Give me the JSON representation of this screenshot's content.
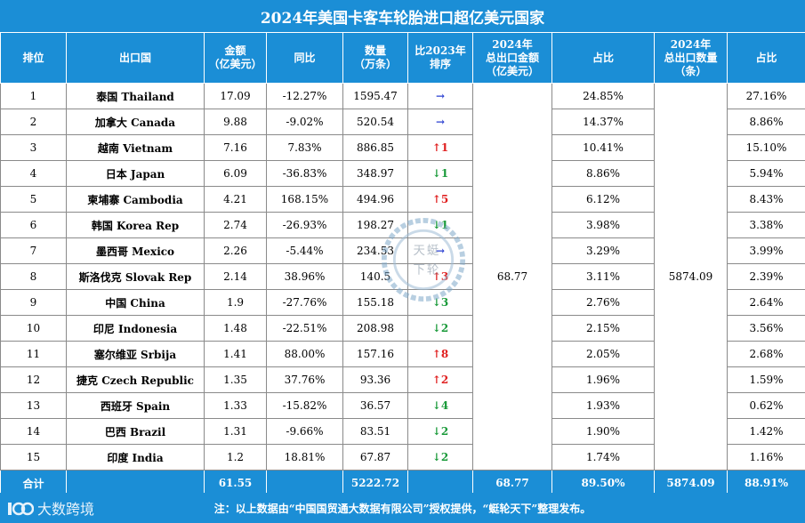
{
  "title": "2024年美国卡客车轮胎进口超亿美元国家",
  "headers": {
    "rank": "排位",
    "country": "出口国",
    "amount": [
      "金额",
      "（亿美元）"
    ],
    "yoy": "同比",
    "qty": [
      "数量",
      "（万条）"
    ],
    "rank_change": [
      "比2023年",
      "排序"
    ],
    "total_amount": [
      "2024年",
      "总出口金额",
      "（亿美元）"
    ],
    "share_amount": "占比",
    "total_qty": [
      "2024年",
      "总出口数量",
      "（条）"
    ],
    "share_qty": "占比"
  },
  "rows": [
    {
      "rank": "1",
      "country": "泰国  Thailand",
      "amount": "17.09",
      "yoy": "-12.27%",
      "qty": "1595.47",
      "arrow": "→",
      "dir": "flat",
      "move": "",
      "share_amount": "24.85%",
      "share_qty": "27.16%"
    },
    {
      "rank": "2",
      "country": "加拿大  Canada",
      "amount": "9.88",
      "yoy": "-9.02%",
      "qty": "520.54",
      "arrow": "→",
      "dir": "flat",
      "move": "",
      "share_amount": "14.37%",
      "share_qty": "8.86%"
    },
    {
      "rank": "3",
      "country": "越南  Vietnam",
      "amount": "7.16",
      "yoy": "7.83%",
      "qty": "886.85",
      "arrow": "↑",
      "dir": "up",
      "move": "1",
      "share_amount": "10.41%",
      "share_qty": "15.10%"
    },
    {
      "rank": "4",
      "country": "日本  Japan",
      "amount": "6.09",
      "yoy": "-36.83%",
      "qty": "348.97",
      "arrow": "↓",
      "dir": "down",
      "move": "1",
      "share_amount": "8.86%",
      "share_qty": "5.94%"
    },
    {
      "rank": "5",
      "country": "柬埔寨  Cambodia",
      "amount": "4.21",
      "yoy": "168.15%",
      "qty": "494.96",
      "arrow": "↑",
      "dir": "up",
      "move": "5",
      "share_amount": "6.12%",
      "share_qty": "8.43%"
    },
    {
      "rank": "6",
      "country": "韩国  Korea Rep",
      "amount": "2.74",
      "yoy": "-26.93%",
      "qty": "198.27",
      "arrow": "↓",
      "dir": "down",
      "move": "1",
      "share_amount": "3.98%",
      "share_qty": "3.38%"
    },
    {
      "rank": "7",
      "country": "墨西哥  Mexico",
      "amount": "2.26",
      "yoy": "-5.44%",
      "qty": "234.53",
      "arrow": "→",
      "dir": "flat",
      "move": "",
      "share_amount": "3.29%",
      "share_qty": "3.99%"
    },
    {
      "rank": "8",
      "country": "斯洛伐克  Slovak Rep",
      "amount": "2.14",
      "yoy": "38.96%",
      "qty": "140.5",
      "arrow": "↑",
      "dir": "up",
      "move": "3",
      "share_amount": "3.11%",
      "share_qty": "2.39%"
    },
    {
      "rank": "9",
      "country": "中国  China",
      "amount": "1.9",
      "yoy": "-27.76%",
      "qty": "155.18",
      "arrow": "↓",
      "dir": "down",
      "move": "3",
      "share_amount": "2.76%",
      "share_qty": "2.64%"
    },
    {
      "rank": "10",
      "country": "印尼  Indonesia",
      "amount": "1.48",
      "yoy": "-22.51%",
      "qty": "208.98",
      "arrow": "↓",
      "dir": "down",
      "move": "2",
      "share_amount": "2.15%",
      "share_qty": "3.56%"
    },
    {
      "rank": "11",
      "country": "塞尔维亚  Srbija",
      "amount": "1.41",
      "yoy": "88.00%",
      "qty": "157.16",
      "arrow": "↑",
      "dir": "up",
      "move": "8",
      "share_amount": "2.05%",
      "share_qty": "2.68%"
    },
    {
      "rank": "12",
      "country": "捷克  Czech Republic",
      "amount": "1.35",
      "yoy": "37.76%",
      "qty": "93.36",
      "arrow": "↑",
      "dir": "up",
      "move": "2",
      "share_amount": "1.96%",
      "share_qty": "1.59%"
    },
    {
      "rank": "13",
      "country": "西班牙  Spain",
      "amount": "1.33",
      "yoy": "-15.82%",
      "qty": "36.57",
      "arrow": "↓",
      "dir": "down",
      "move": "4",
      "share_amount": "1.93%",
      "share_qty": "0.62%"
    },
    {
      "rank": "14",
      "country": "巴西  Brazil",
      "amount": "1.31",
      "yoy": "-9.66%",
      "qty": "83.51",
      "arrow": "↓",
      "dir": "down",
      "move": "2",
      "share_amount": "1.90%",
      "share_qty": "1.42%"
    },
    {
      "rank": "15",
      "country": "印度  India",
      "amount": "1.2",
      "yoy": "18.81%",
      "qty": "67.87",
      "arrow": "↓",
      "dir": "down",
      "move": "2",
      "share_amount": "1.74%",
      "share_qty": "1.16%"
    }
  ],
  "merged": {
    "total_amount": "68.77",
    "total_qty": "5874.09"
  },
  "totals": {
    "label": "合计",
    "amount": "61.55",
    "qty": "5222.72",
    "total_amount": "68.77",
    "share_amount": "89.50%",
    "total_qty": "5874.09",
    "share_qty": "88.91%"
  },
  "footer": {
    "note": "注：以上数据由“中国国贸通大数据有限公司”授权提供，“蜓轮天下”整理发布。",
    "brand": "大数跨境"
  },
  "watermark": {
    "chars": [
      "天",
      "蜓",
      "下",
      "轮"
    ]
  },
  "colors": {
    "header_bg": "#1b8ed6",
    "up": "#e02020",
    "down": "#1a9a3a",
    "flat": "#2a3fd0"
  }
}
